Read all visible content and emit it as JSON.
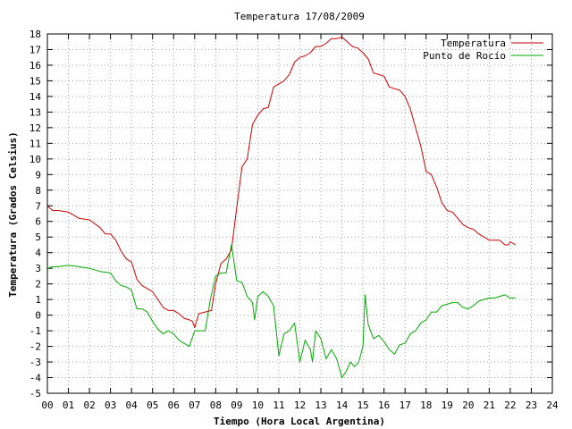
{
  "chart_data": {
    "type": "line",
    "title": "Temperatura 17/08/2009",
    "xlabel": "Tiempo (Hora Local Argentina)",
    "ylabel": "Temperatura (Grados Celsius)",
    "xlim": [
      0,
      24
    ],
    "ylim": [
      -5,
      18
    ],
    "x_ticks": [
      "00",
      "01",
      "02",
      "03",
      "04",
      "05",
      "06",
      "07",
      "08",
      "09",
      "10",
      "11",
      "12",
      "13",
      "14",
      "15",
      "16",
      "17",
      "18",
      "19",
      "20",
      "21",
      "22",
      "23",
      "24"
    ],
    "y_ticks": [
      -5,
      -4,
      -3,
      -2,
      -1,
      0,
      1,
      2,
      3,
      4,
      5,
      6,
      7,
      8,
      9,
      10,
      11,
      12,
      13,
      14,
      15,
      16,
      17,
      18
    ],
    "grid": true,
    "legend_position": "top-right",
    "series": [
      {
        "name": "Temperatura",
        "color": "#cc0000",
        "points": [
          [
            0.0,
            7.0
          ],
          [
            0.25,
            6.7
          ],
          [
            0.5,
            6.7
          ],
          [
            1.0,
            6.6
          ],
          [
            1.5,
            6.2
          ],
          [
            2.0,
            6.1
          ],
          [
            2.5,
            5.6
          ],
          [
            2.75,
            5.2
          ],
          [
            3.0,
            5.2
          ],
          [
            3.25,
            4.8
          ],
          [
            3.5,
            4.1
          ],
          [
            3.75,
            3.6
          ],
          [
            4.0,
            3.4
          ],
          [
            4.25,
            2.3
          ],
          [
            4.5,
            1.9
          ],
          [
            4.75,
            1.7
          ],
          [
            5.0,
            1.5
          ],
          [
            5.25,
            1.0
          ],
          [
            5.5,
            0.5
          ],
          [
            5.75,
            0.3
          ],
          [
            6.0,
            0.3
          ],
          [
            6.25,
            0.1
          ],
          [
            6.5,
            -0.2
          ],
          [
            6.75,
            -0.3
          ],
          [
            6.9,
            -0.4
          ],
          [
            7.0,
            -0.8
          ],
          [
            7.2,
            0.1
          ],
          [
            7.5,
            0.2
          ],
          [
            7.8,
            0.3
          ],
          [
            8.0,
            2.0
          ],
          [
            8.25,
            3.3
          ],
          [
            8.5,
            3.6
          ],
          [
            8.75,
            4.2
          ],
          [
            9.0,
            6.9
          ],
          [
            9.25,
            9.5
          ],
          [
            9.5,
            10.0
          ],
          [
            9.75,
            12.2
          ],
          [
            10.0,
            12.8
          ],
          [
            10.25,
            13.2
          ],
          [
            10.5,
            13.3
          ],
          [
            10.75,
            14.6
          ],
          [
            11.0,
            14.8
          ],
          [
            11.25,
            15.0
          ],
          [
            11.5,
            15.4
          ],
          [
            11.75,
            16.2
          ],
          [
            12.0,
            16.5
          ],
          [
            12.25,
            16.6
          ],
          [
            12.5,
            16.8
          ],
          [
            12.75,
            17.2
          ],
          [
            13.0,
            17.2
          ],
          [
            13.25,
            17.4
          ],
          [
            13.5,
            17.7
          ],
          [
            13.75,
            17.7
          ],
          [
            14.0,
            17.8
          ],
          [
            14.25,
            17.5
          ],
          [
            14.5,
            17.2
          ],
          [
            14.75,
            17.1
          ],
          [
            15.0,
            16.8
          ],
          [
            15.25,
            16.4
          ],
          [
            15.5,
            15.5
          ],
          [
            15.75,
            15.4
          ],
          [
            16.0,
            15.3
          ],
          [
            16.25,
            14.6
          ],
          [
            16.5,
            14.5
          ],
          [
            16.75,
            14.4
          ],
          [
            17.0,
            14.0
          ],
          [
            17.25,
            13.2
          ],
          [
            17.5,
            12.0
          ],
          [
            17.75,
            10.8
          ],
          [
            18.0,
            9.2
          ],
          [
            18.25,
            9.0
          ],
          [
            18.5,
            8.2
          ],
          [
            18.75,
            7.2
          ],
          [
            19.0,
            6.7
          ],
          [
            19.25,
            6.6
          ],
          [
            19.5,
            6.2
          ],
          [
            19.75,
            5.8
          ],
          [
            20.0,
            5.6
          ],
          [
            20.25,
            5.5
          ],
          [
            20.5,
            5.2
          ],
          [
            20.75,
            5.0
          ],
          [
            21.0,
            4.8
          ],
          [
            21.25,
            4.8
          ],
          [
            21.5,
            4.8
          ],
          [
            21.75,
            4.5
          ],
          [
            21.9,
            4.5
          ],
          [
            22.0,
            4.7
          ],
          [
            22.25,
            4.5
          ]
        ]
      },
      {
        "name": "Punto de Rocío",
        "color": "#00aa00",
        "points": [
          [
            0.0,
            3.0
          ],
          [
            0.25,
            3.1
          ],
          [
            0.5,
            3.1
          ],
          [
            1.0,
            3.2
          ],
          [
            1.5,
            3.1
          ],
          [
            2.0,
            3.0
          ],
          [
            2.5,
            2.8
          ],
          [
            3.0,
            2.7
          ],
          [
            3.25,
            2.2
          ],
          [
            3.5,
            1.9
          ],
          [
            3.75,
            1.8
          ],
          [
            4.0,
            1.6
          ],
          [
            4.25,
            0.4
          ],
          [
            4.5,
            0.4
          ],
          [
            4.75,
            0.2
          ],
          [
            5.0,
            -0.4
          ],
          [
            5.25,
            -0.9
          ],
          [
            5.5,
            -1.2
          ],
          [
            5.75,
            -1.0
          ],
          [
            6.0,
            -1.2
          ],
          [
            6.25,
            -1.6
          ],
          [
            6.5,
            -1.8
          ],
          [
            6.75,
            -2.0
          ],
          [
            7.0,
            -1.0
          ],
          [
            7.5,
            -1.0
          ],
          [
            7.75,
            1.0
          ],
          [
            8.0,
            2.5
          ],
          [
            8.25,
            2.7
          ],
          [
            8.5,
            2.7
          ],
          [
            8.75,
            4.5
          ],
          [
            9.0,
            2.2
          ],
          [
            9.25,
            2.1
          ],
          [
            9.5,
            1.2
          ],
          [
            9.75,
            0.8
          ],
          [
            9.85,
            -0.3
          ],
          [
            10.0,
            1.2
          ],
          [
            10.25,
            1.5
          ],
          [
            10.5,
            1.2
          ],
          [
            10.75,
            0.6
          ],
          [
            11.0,
            -2.6
          ],
          [
            11.25,
            -1.2
          ],
          [
            11.5,
            -1.0
          ],
          [
            11.75,
            -0.5
          ],
          [
            12.0,
            -3.0
          ],
          [
            12.25,
            -1.6
          ],
          [
            12.5,
            -2.2
          ],
          [
            12.6,
            -3.0
          ],
          [
            12.75,
            -1.0
          ],
          [
            13.0,
            -1.5
          ],
          [
            13.25,
            -2.8
          ],
          [
            13.5,
            -2.2
          ],
          [
            13.75,
            -2.8
          ],
          [
            14.0,
            -4.0
          ],
          [
            14.2,
            -3.6
          ],
          [
            14.4,
            -3.0
          ],
          [
            14.6,
            -3.3
          ],
          [
            14.8,
            -3.0
          ],
          [
            15.0,
            -2.0
          ],
          [
            15.1,
            1.3
          ],
          [
            15.25,
            -0.6
          ],
          [
            15.5,
            -1.5
          ],
          [
            15.75,
            -1.3
          ],
          [
            16.0,
            -1.7
          ],
          [
            16.25,
            -2.2
          ],
          [
            16.5,
            -2.5
          ],
          [
            16.75,
            -1.9
          ],
          [
            17.0,
            -1.8
          ],
          [
            17.25,
            -1.2
          ],
          [
            17.5,
            -1.0
          ],
          [
            17.75,
            -0.5
          ],
          [
            18.0,
            -0.3
          ],
          [
            18.25,
            0.2
          ],
          [
            18.5,
            0.2
          ],
          [
            18.75,
            0.6
          ],
          [
            19.0,
            0.7
          ],
          [
            19.25,
            0.8
          ],
          [
            19.5,
            0.8
          ],
          [
            19.75,
            0.5
          ],
          [
            20.0,
            0.4
          ],
          [
            20.25,
            0.6
          ],
          [
            20.5,
            0.9
          ],
          [
            20.75,
            1.0
          ],
          [
            21.0,
            1.1
          ],
          [
            21.25,
            1.1
          ],
          [
            21.5,
            1.2
          ],
          [
            21.75,
            1.3
          ],
          [
            22.0,
            1.1
          ],
          [
            22.25,
            1.1
          ]
        ]
      }
    ]
  }
}
